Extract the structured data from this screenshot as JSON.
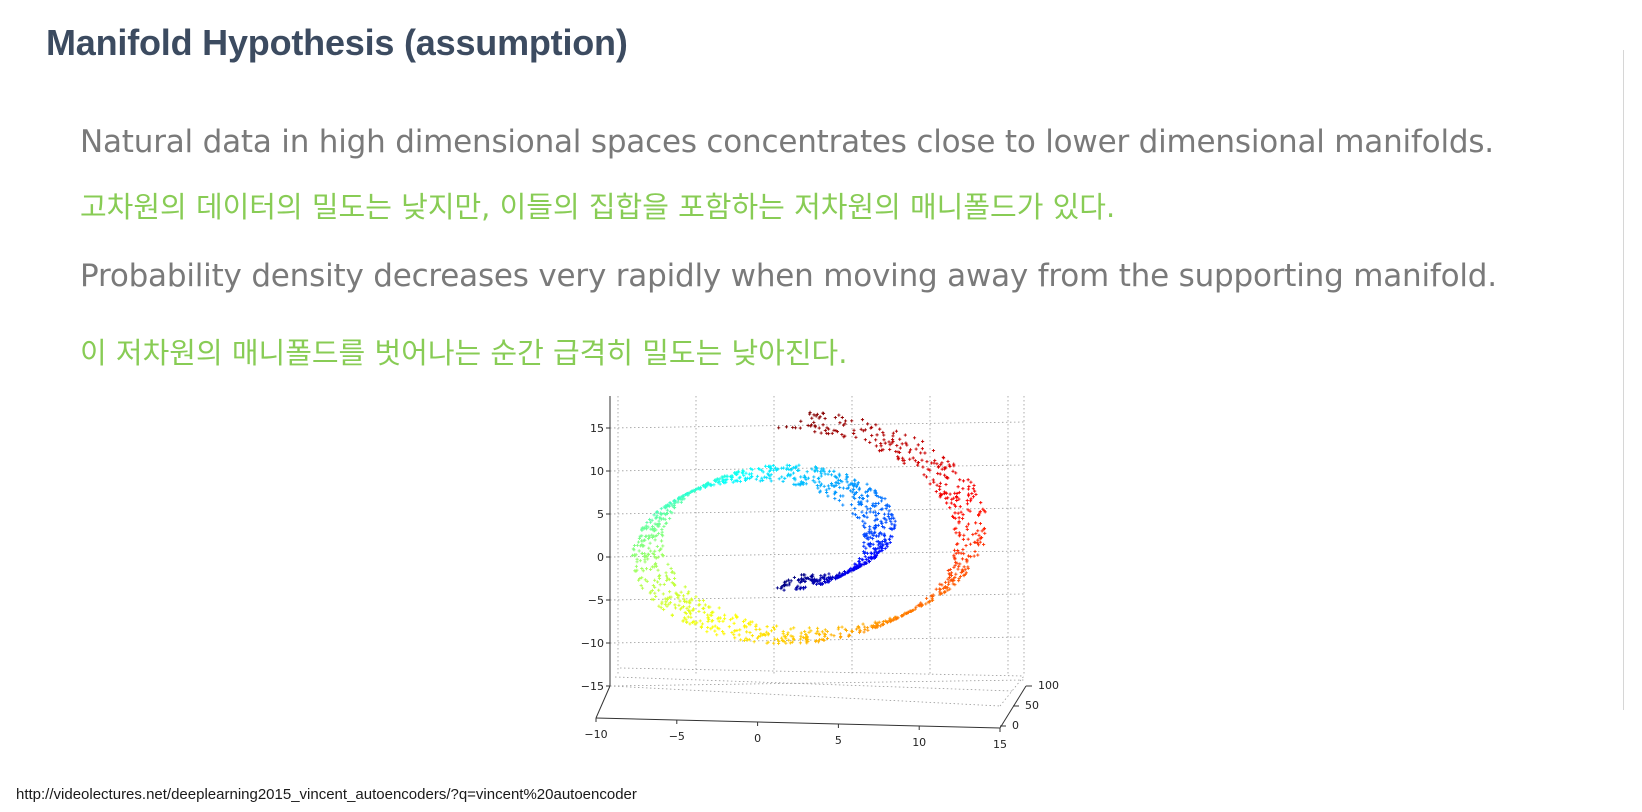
{
  "slide": {
    "title": "Manifold Hypothesis (assumption)",
    "bullets": [
      {
        "en": "Natural data in high dimensional spaces concentrates close to lower dimensional manifolds.",
        "ko": "고차원의 데이터의 밀도는 낮지만, 이들의 집합을 포함하는 저차원의 매니폴드가 있다."
      },
      {
        "en": "Probability density decreases very rapidly when moving away from the supporting manifold.",
        "ko": "이 저차원의 매니폴드를 벗어나는 순간 급격히 밀도는 낮아진다."
      }
    ],
    "source": "http://videolectures.net/deeplearning2015_vincent_autoencoders/?q=vincent%20autoencoder",
    "colors": {
      "title": "#3c4b60",
      "english": "#7a7a7a",
      "korean": "#88cc55"
    }
  },
  "chart_data": {
    "type": "scatter",
    "projection": "3d",
    "colormap": "jet",
    "title": "",
    "x_ticks": [
      "−10",
      "−5",
      "0",
      "5",
      "10",
      "15"
    ],
    "y_ticks": [
      "0",
      "50",
      "100"
    ],
    "z_ticks": [
      "−15",
      "−10",
      "−5",
      "0",
      "5",
      "10",
      "15"
    ],
    "xlim": [
      -10,
      15
    ],
    "ylim": [
      0,
      100
    ],
    "zlim": [
      -15,
      15
    ],
    "grid": true,
    "point_count": 1600,
    "series": [
      {
        "name": "",
        "shape": "swiss roll",
        "t_range": [
          4.7,
          14.1
        ],
        "y_range": [
          0,
          20
        ]
      }
    ]
  }
}
